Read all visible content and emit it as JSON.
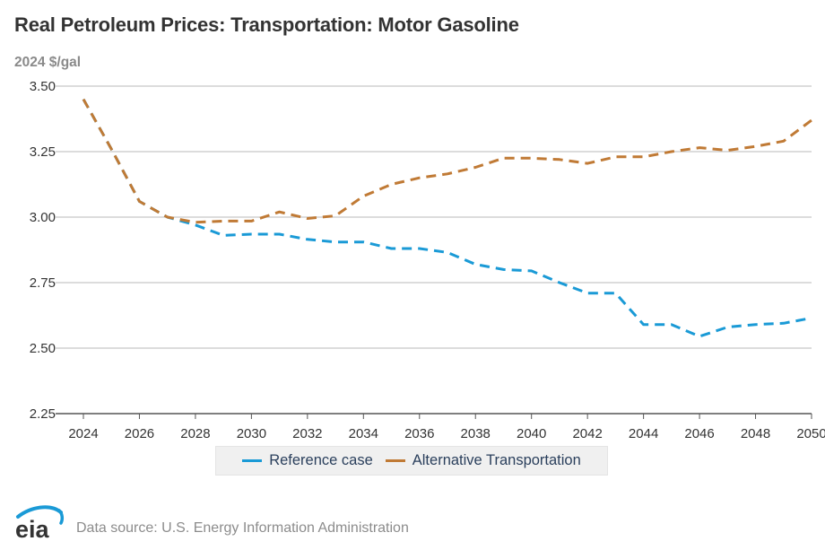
{
  "header": {
    "title": "Real Petroleum Prices: Transportation: Motor Gasoline",
    "units": "2024 $/gal"
  },
  "legend": {
    "items": [
      {
        "label": "Reference case",
        "color": "#1a9ad6"
      },
      {
        "label": "Alternative Transportation",
        "color": "#c07a35"
      }
    ]
  },
  "footer": {
    "logo_text": "eia",
    "logo_icon": "eia-logo-icon",
    "source": "Data source: U.S. Energy Information Administration"
  },
  "chart_data": {
    "type": "line",
    "title": "Real Petroleum Prices: Transportation: Motor Gasoline",
    "ylabel": "2024 $/gal",
    "xlabel": "",
    "ylim": [
      2.25,
      3.5
    ],
    "xlim": [
      2024,
      2050
    ],
    "yticks": [
      "3.50",
      "3.25",
      "3.00",
      "2.75",
      "2.50",
      "2.25"
    ],
    "ytick_values": [
      3.5,
      3.25,
      3.0,
      2.75,
      2.5,
      2.25
    ],
    "xticks": [
      "2024",
      "2026",
      "2028",
      "2030",
      "2032",
      "2034",
      "2036",
      "2038",
      "2040",
      "2042",
      "2044",
      "2046",
      "2048",
      "2050"
    ],
    "xtick_values": [
      2024,
      2026,
      2028,
      2030,
      2032,
      2034,
      2036,
      2038,
      2040,
      2042,
      2044,
      2046,
      2048,
      2050
    ],
    "grid": true,
    "legend_position": "bottom-center",
    "line_style": "dashed",
    "x": [
      2024,
      2025,
      2026,
      2027,
      2028,
      2029,
      2030,
      2031,
      2032,
      2033,
      2034,
      2035,
      2036,
      2037,
      2038,
      2039,
      2040,
      2041,
      2042,
      2043,
      2044,
      2045,
      2046,
      2047,
      2048,
      2049,
      2050
    ],
    "series": [
      {
        "name": "Reference case",
        "color": "#1a9ad6",
        "values": [
          3.45,
          3.26,
          3.06,
          3.0,
          2.97,
          2.93,
          2.935,
          2.935,
          2.915,
          2.905,
          2.905,
          2.88,
          2.88,
          2.865,
          2.82,
          2.8,
          2.795,
          2.75,
          2.71,
          2.71,
          2.59,
          2.59,
          2.545,
          2.58,
          2.59,
          2.595,
          2.615
        ]
      },
      {
        "name": "Alternative Transportation",
        "color": "#c07a35",
        "values": [
          3.45,
          3.26,
          3.06,
          3.0,
          2.98,
          2.985,
          2.985,
          3.02,
          2.995,
          3.005,
          3.08,
          3.125,
          3.15,
          3.165,
          3.19,
          3.225,
          3.225,
          3.22,
          3.205,
          3.23,
          3.23,
          3.25,
          3.265,
          3.255,
          3.27,
          3.29,
          3.37
        ]
      }
    ]
  }
}
